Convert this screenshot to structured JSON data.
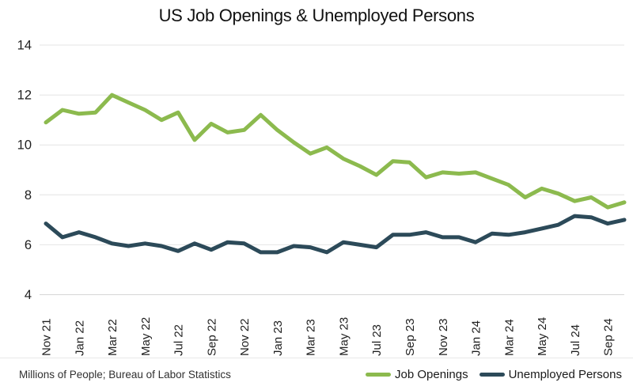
{
  "title": "US Job Openings & Unemployed Persons",
  "footer": {
    "source_note": "Millions of People; Bureau of Labor Statistics"
  },
  "legend": [
    {
      "label": "Job Openings",
      "color": "#8CBA4E"
    },
    {
      "label": "Unemployed Persons",
      "color": "#2C4A59"
    }
  ],
  "chart_data": {
    "type": "line",
    "title": "US Job Openings & Unemployed Persons",
    "categories": [
      "Nov 21",
      "Dec 21",
      "Jan 22",
      "Feb 22",
      "Mar 22",
      "Apr 22",
      "May 22",
      "Jun 22",
      "Jul 22",
      "Aug 22",
      "Sep 22",
      "Oct 22",
      "Nov 22",
      "Dec 22",
      "Jan 23",
      "Feb 23",
      "Mar 23",
      "Apr 23",
      "May 23",
      "Jun 23",
      "Jul 23",
      "Aug 23",
      "Sep 23",
      "Oct 23",
      "Nov 23",
      "Dec 23",
      "Jan 24",
      "Feb 24",
      "Mar 24",
      "Apr 24",
      "May 24",
      "Jun 24",
      "Jul 24",
      "Aug 24",
      "Sep 24",
      "Oct 24"
    ],
    "x_tick_labels": [
      "Nov 21",
      "Jan 22",
      "Mar 22",
      "May 22",
      "Jul 22",
      "Sep 22",
      "Nov 22",
      "Jan 23",
      "Mar 23",
      "May 23",
      "Jul 23",
      "Sep 23",
      "Nov 23",
      "Jan 24",
      "Mar 24",
      "May 24",
      "Jul 24",
      "Sep 24"
    ],
    "series": [
      {
        "name": "Job Openings",
        "color": "#8CBA4E",
        "values": [
          10.9,
          11.4,
          11.25,
          11.3,
          12.0,
          11.7,
          11.4,
          11.0,
          11.3,
          10.2,
          10.85,
          10.5,
          10.6,
          11.2,
          10.6,
          10.1,
          9.65,
          9.9,
          9.45,
          9.15,
          8.8,
          9.35,
          9.3,
          8.7,
          8.9,
          8.85,
          8.9,
          8.65,
          8.4,
          7.9,
          8.25,
          8.05,
          7.75,
          7.9,
          7.5,
          7.7
        ]
      },
      {
        "name": "Unemployed Persons",
        "color": "#2C4A59",
        "values": [
          6.85,
          6.3,
          6.5,
          6.3,
          6.05,
          5.95,
          6.05,
          5.95,
          5.75,
          6.05,
          5.8,
          6.1,
          6.05,
          5.7,
          5.7,
          5.95,
          5.9,
          5.7,
          6.1,
          6.0,
          5.9,
          6.4,
          6.4,
          6.5,
          6.3,
          6.3,
          6.1,
          6.45,
          6.4,
          6.5,
          6.65,
          6.8,
          7.15,
          7.1,
          6.85,
          7.0
        ]
      }
    ],
    "ylabel": "Millions of People",
    "xlabel": "",
    "ylim": [
      4,
      14
    ],
    "y_ticks": [
      4,
      6,
      8,
      10,
      12,
      14
    ],
    "grid": "horizontal",
    "legend_position": "bottom-right",
    "source": "Bureau of Labor Statistics"
  },
  "colors": {
    "gridline": "#E4E4E4",
    "axis_line": "#D6D6D6",
    "tick_text": "#1f1f1f"
  }
}
